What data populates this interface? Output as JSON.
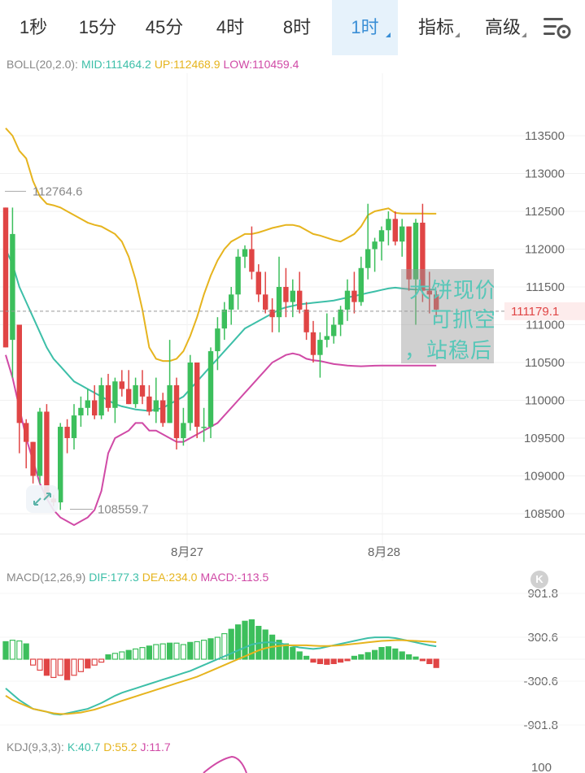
{
  "tabs": [
    {
      "label": "1秒",
      "active": false,
      "caret": false
    },
    {
      "label": "15分",
      "active": false,
      "caret": false
    },
    {
      "label": "45分",
      "active": false,
      "caret": false
    },
    {
      "label": "4时",
      "active": false,
      "caret": false
    },
    {
      "label": "8时",
      "active": false,
      "caret": false
    },
    {
      "label": "1时",
      "active": true,
      "caret": true
    },
    {
      "label": "指标",
      "active": false,
      "caret": true
    },
    {
      "label": "高级",
      "active": false,
      "caret": true
    }
  ],
  "settings_icon": "chart-settings-icon",
  "boll": {
    "label": "BOLL(20,2.0):",
    "mid": "MID:111464.2",
    "up": "UP:112468.9",
    "low": "LOW:110459.4",
    "colors": {
      "mid": "#3dbfa8",
      "up": "#e6b41e",
      "low": "#d04aa6"
    }
  },
  "main_chart": {
    "y_ticks": [
      "113500",
      "113000",
      "112500",
      "112000",
      "111500",
      "111000",
      "110500",
      "110000",
      "109500",
      "109000",
      "108500"
    ],
    "price_tag": "111179.1",
    "high_marker": "112764.6",
    "low_marker": "108559.7",
    "date_labels": [
      "8月27",
      "8月28"
    ]
  },
  "overlay_text": [
    "大饼现价",
    "可抓空",
    "，站稳后"
  ],
  "macd": {
    "label": "MACD(12,26,9)",
    "dif": "DIF:177.3",
    "dea": "DEA:234.0",
    "macd": "MACD:-113.5",
    "y_ticks": [
      "901.8",
      "300.6",
      "-300.6",
      "-901.8"
    ],
    "badge": "K"
  },
  "kdj": {
    "label": "KDJ(9,3,3):",
    "k": "K:40.7",
    "d": "D:55.2",
    "j": "J:11.7",
    "y_tick": "100"
  },
  "colors": {
    "up": "#e04545",
    "down": "#3cbf5c",
    "accent": "#3a8fd6"
  },
  "chart_data": {
    "type": "candlestick",
    "x_dates": [
      "8月27",
      "8月28"
    ],
    "ylim": [
      108300,
      113900
    ],
    "candles": [
      [
        112550,
        112550,
        110700,
        110700
      ],
      [
        110800,
        112550,
        110300,
        112200
      ],
      [
        111000,
        111000,
        109300,
        109700
      ],
      [
        109700,
        109750,
        109100,
        109450
      ],
      [
        109450,
        109450,
        108900,
        109000
      ],
      [
        109000,
        109900,
        108900,
        109850
      ],
      [
        109850,
        109950,
        108700,
        108700
      ],
      [
        108700,
        108750,
        108600,
        108650
      ],
      [
        108650,
        109700,
        108550,
        109650
      ],
      [
        109650,
        109750,
        109300,
        109500
      ],
      [
        109500,
        109950,
        109350,
        109800
      ],
      [
        109800,
        110050,
        109650,
        109900
      ],
      [
        109900,
        110150,
        109800,
        110000
      ],
      [
        110000,
        110200,
        109750,
        109800
      ],
      [
        109800,
        110300,
        109750,
        110200
      ],
      [
        110200,
        110350,
        109850,
        109900
      ],
      [
        109900,
        110300,
        109700,
        110250
      ],
      [
        110250,
        110400,
        110050,
        110150
      ],
      [
        110150,
        110400,
        109950,
        109950
      ],
      [
        109950,
        110300,
        109900,
        110200
      ],
      [
        110200,
        110400,
        109950,
        110050
      ],
      [
        110050,
        110200,
        109800,
        109850
      ],
      [
        109850,
        110300,
        109700,
        110000
      ],
      [
        110000,
        110100,
        109650,
        109700
      ],
      [
        109700,
        110800,
        109700,
        110200
      ],
      [
        110200,
        110300,
        109350,
        109500
      ],
      [
        109500,
        109900,
        109400,
        109700
      ],
      [
        109700,
        110600,
        109600,
        110500
      ],
      [
        110500,
        110500,
        109500,
        109650
      ],
      [
        109650,
        109900,
        109450,
        109650
      ],
      [
        109650,
        110700,
        109500,
        110650
      ],
      [
        110650,
        111100,
        110400,
        110950
      ],
      [
        110950,
        111300,
        110800,
        111200
      ],
      [
        111200,
        111500,
        111000,
        111400
      ],
      [
        111400,
        112000,
        111200,
        111900
      ],
      [
        111900,
        112050,
        111750,
        112000
      ],
      [
        112000,
        112300,
        111600,
        111700
      ],
      [
        111700,
        111800,
        111300,
        111400
      ],
      [
        111400,
        111700,
        111150,
        111200
      ],
      [
        111200,
        111350,
        110900,
        111100
      ],
      [
        111100,
        111900,
        110900,
        111500
      ],
      [
        111500,
        111750,
        111100,
        111300
      ],
      [
        111300,
        111600,
        111100,
        111450
      ],
      [
        111450,
        111700,
        111150,
        111200
      ],
      [
        111200,
        111300,
        110800,
        110900
      ],
      [
        110900,
        111050,
        110500,
        110600
      ],
      [
        110600,
        110900,
        110300,
        110800
      ],
      [
        110800,
        111150,
        110700,
        110850
      ],
      [
        110850,
        111100,
        110750,
        111000
      ],
      [
        111000,
        111250,
        110850,
        111200
      ],
      [
        111200,
        111600,
        111050,
        111450
      ],
      [
        111450,
        111700,
        111150,
        111300
      ],
      [
        111300,
        111900,
        111250,
        111750
      ],
      [
        111750,
        112600,
        111600,
        112000
      ],
      [
        112000,
        112150,
        111700,
        112100
      ],
      [
        112100,
        112300,
        111850,
        112250
      ],
      [
        112250,
        112500,
        112050,
        112400
      ],
      [
        112400,
        112500,
        112050,
        112100
      ],
      [
        112100,
        112400,
        111900,
        112300
      ],
      [
        112300,
        112300,
        111450,
        111600
      ],
      [
        111600,
        112400,
        111000,
        112350
      ],
      [
        112350,
        112600,
        111300,
        111450
      ],
      [
        111450,
        111700,
        111150,
        111400
      ],
      [
        111400,
        111450,
        111100,
        111200
      ]
    ]
  }
}
